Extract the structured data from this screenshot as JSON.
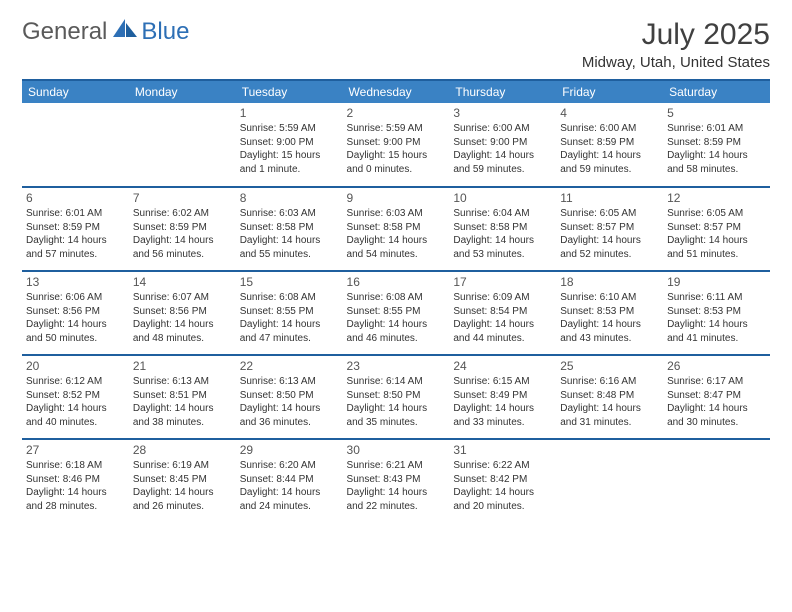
{
  "brand": {
    "part1": "General",
    "part2": "Blue"
  },
  "title": "July 2025",
  "location": "Midway, Utah, United States",
  "colors": {
    "header_bg": "#3a82c4",
    "header_border": "#1f5f9e",
    "header_text": "#ffffff",
    "body_text": "#333333",
    "title_text": "#404040",
    "brand_gray": "#5a5a5a",
    "brand_blue": "#2d6fb5"
  },
  "day_headers": [
    "Sunday",
    "Monday",
    "Tuesday",
    "Wednesday",
    "Thursday",
    "Friday",
    "Saturday"
  ],
  "weeks": [
    [
      null,
      null,
      {
        "n": "1",
        "sr": "Sunrise: 5:59 AM",
        "ss": "Sunset: 9:00 PM",
        "dl": "Daylight: 15 hours and 1 minute."
      },
      {
        "n": "2",
        "sr": "Sunrise: 5:59 AM",
        "ss": "Sunset: 9:00 PM",
        "dl": "Daylight: 15 hours and 0 minutes."
      },
      {
        "n": "3",
        "sr": "Sunrise: 6:00 AM",
        "ss": "Sunset: 9:00 PM",
        "dl": "Daylight: 14 hours and 59 minutes."
      },
      {
        "n": "4",
        "sr": "Sunrise: 6:00 AM",
        "ss": "Sunset: 8:59 PM",
        "dl": "Daylight: 14 hours and 59 minutes."
      },
      {
        "n": "5",
        "sr": "Sunrise: 6:01 AM",
        "ss": "Sunset: 8:59 PM",
        "dl": "Daylight: 14 hours and 58 minutes."
      }
    ],
    [
      {
        "n": "6",
        "sr": "Sunrise: 6:01 AM",
        "ss": "Sunset: 8:59 PM",
        "dl": "Daylight: 14 hours and 57 minutes."
      },
      {
        "n": "7",
        "sr": "Sunrise: 6:02 AM",
        "ss": "Sunset: 8:59 PM",
        "dl": "Daylight: 14 hours and 56 minutes."
      },
      {
        "n": "8",
        "sr": "Sunrise: 6:03 AM",
        "ss": "Sunset: 8:58 PM",
        "dl": "Daylight: 14 hours and 55 minutes."
      },
      {
        "n": "9",
        "sr": "Sunrise: 6:03 AM",
        "ss": "Sunset: 8:58 PM",
        "dl": "Daylight: 14 hours and 54 minutes."
      },
      {
        "n": "10",
        "sr": "Sunrise: 6:04 AM",
        "ss": "Sunset: 8:58 PM",
        "dl": "Daylight: 14 hours and 53 minutes."
      },
      {
        "n": "11",
        "sr": "Sunrise: 6:05 AM",
        "ss": "Sunset: 8:57 PM",
        "dl": "Daylight: 14 hours and 52 minutes."
      },
      {
        "n": "12",
        "sr": "Sunrise: 6:05 AM",
        "ss": "Sunset: 8:57 PM",
        "dl": "Daylight: 14 hours and 51 minutes."
      }
    ],
    [
      {
        "n": "13",
        "sr": "Sunrise: 6:06 AM",
        "ss": "Sunset: 8:56 PM",
        "dl": "Daylight: 14 hours and 50 minutes."
      },
      {
        "n": "14",
        "sr": "Sunrise: 6:07 AM",
        "ss": "Sunset: 8:56 PM",
        "dl": "Daylight: 14 hours and 48 minutes."
      },
      {
        "n": "15",
        "sr": "Sunrise: 6:08 AM",
        "ss": "Sunset: 8:55 PM",
        "dl": "Daylight: 14 hours and 47 minutes."
      },
      {
        "n": "16",
        "sr": "Sunrise: 6:08 AM",
        "ss": "Sunset: 8:55 PM",
        "dl": "Daylight: 14 hours and 46 minutes."
      },
      {
        "n": "17",
        "sr": "Sunrise: 6:09 AM",
        "ss": "Sunset: 8:54 PM",
        "dl": "Daylight: 14 hours and 44 minutes."
      },
      {
        "n": "18",
        "sr": "Sunrise: 6:10 AM",
        "ss": "Sunset: 8:53 PM",
        "dl": "Daylight: 14 hours and 43 minutes."
      },
      {
        "n": "19",
        "sr": "Sunrise: 6:11 AM",
        "ss": "Sunset: 8:53 PM",
        "dl": "Daylight: 14 hours and 41 minutes."
      }
    ],
    [
      {
        "n": "20",
        "sr": "Sunrise: 6:12 AM",
        "ss": "Sunset: 8:52 PM",
        "dl": "Daylight: 14 hours and 40 minutes."
      },
      {
        "n": "21",
        "sr": "Sunrise: 6:13 AM",
        "ss": "Sunset: 8:51 PM",
        "dl": "Daylight: 14 hours and 38 minutes."
      },
      {
        "n": "22",
        "sr": "Sunrise: 6:13 AM",
        "ss": "Sunset: 8:50 PM",
        "dl": "Daylight: 14 hours and 36 minutes."
      },
      {
        "n": "23",
        "sr": "Sunrise: 6:14 AM",
        "ss": "Sunset: 8:50 PM",
        "dl": "Daylight: 14 hours and 35 minutes."
      },
      {
        "n": "24",
        "sr": "Sunrise: 6:15 AM",
        "ss": "Sunset: 8:49 PM",
        "dl": "Daylight: 14 hours and 33 minutes."
      },
      {
        "n": "25",
        "sr": "Sunrise: 6:16 AM",
        "ss": "Sunset: 8:48 PM",
        "dl": "Daylight: 14 hours and 31 minutes."
      },
      {
        "n": "26",
        "sr": "Sunrise: 6:17 AM",
        "ss": "Sunset: 8:47 PM",
        "dl": "Daylight: 14 hours and 30 minutes."
      }
    ],
    [
      {
        "n": "27",
        "sr": "Sunrise: 6:18 AM",
        "ss": "Sunset: 8:46 PM",
        "dl": "Daylight: 14 hours and 28 minutes."
      },
      {
        "n": "28",
        "sr": "Sunrise: 6:19 AM",
        "ss": "Sunset: 8:45 PM",
        "dl": "Daylight: 14 hours and 26 minutes."
      },
      {
        "n": "29",
        "sr": "Sunrise: 6:20 AM",
        "ss": "Sunset: 8:44 PM",
        "dl": "Daylight: 14 hours and 24 minutes."
      },
      {
        "n": "30",
        "sr": "Sunrise: 6:21 AM",
        "ss": "Sunset: 8:43 PM",
        "dl": "Daylight: 14 hours and 22 minutes."
      },
      {
        "n": "31",
        "sr": "Sunrise: 6:22 AM",
        "ss": "Sunset: 8:42 PM",
        "dl": "Daylight: 14 hours and 20 minutes."
      },
      null,
      null
    ]
  ]
}
